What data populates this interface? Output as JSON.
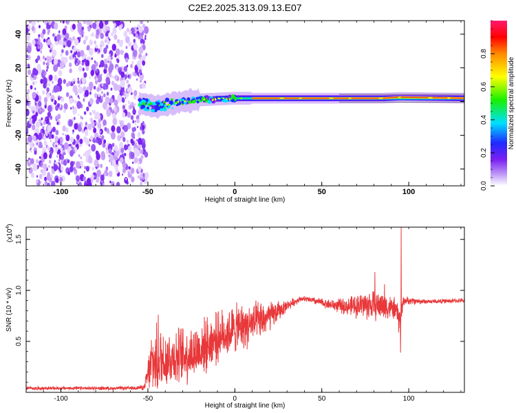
{
  "title": "C2E2.2025.313.09.13.E07",
  "colors": {
    "line": "#e8383a",
    "axis": "#000000",
    "noise_dark": "#7a1ff0",
    "noise_light": "#d8b9fb"
  },
  "chart_data": [
    {
      "type": "heatmap",
      "name": "spectrogram",
      "xlabel": "Height of straight line (km)",
      "ylabel": "Frequency (Hz)",
      "xlim": [
        -120,
        132
      ],
      "ylim": [
        -50,
        48
      ],
      "x_ticks": [
        -100,
        -50,
        0,
        50,
        100
      ],
      "x_tick_labels": [
        "-100",
        "-50",
        "0",
        "50",
        "100"
      ],
      "y_ticks": [
        40,
        20,
        0,
        -20,
        -40
      ],
      "y_tick_labels": [
        "40",
        "20",
        "0",
        "-20",
        "-40"
      ],
      "noise_region_x": [
        -120,
        -53
      ],
      "signal_band": {
        "x_start": -55,
        "x_end": 132,
        "freq_center_hz": [
          [
            -55,
            -1
          ],
          [
            -50,
            -2
          ],
          [
            -45,
            -3
          ],
          [
            -40,
            -2
          ],
          [
            -35,
            -1
          ],
          [
            -30,
            0
          ],
          [
            -25,
            0.5
          ],
          [
            -20,
            1
          ],
          [
            -10,
            1.5
          ],
          [
            0,
            2
          ],
          [
            20,
            2
          ],
          [
            60,
            2
          ],
          [
            85,
            2
          ],
          [
            95,
            2.5
          ],
          [
            132,
            2
          ]
        ]
      },
      "colorbar": {
        "label": "Normalized spectral amplitude",
        "range": [
          0,
          1
        ],
        "ticks": [
          0.0,
          0.2,
          0.4,
          0.6,
          0.8
        ],
        "tick_labels": [
          "0.0",
          "0.2",
          "0.4",
          "0.6",
          "0.8"
        ],
        "colormap": [
          "#ffffff",
          "#7a1ff0",
          "#1e2aff",
          "#00e0ff",
          "#19f000",
          "#ffff00",
          "#ff8a00",
          "#ff0000",
          "#ff1a6e"
        ]
      }
    },
    {
      "type": "line",
      "name": "snr",
      "xlabel": "Height of straight line (km)",
      "ylabel": "SNR (10 * v/v)",
      "scale_label": "(x10",
      "scale_exponent": "4",
      "scale_close": ")",
      "xlim": [
        -120,
        132
      ],
      "ylim": [
        0,
        1.62
      ],
      "x_ticks": [
        -100,
        -50,
        0,
        50,
        100
      ],
      "x_tick_labels": [
        "-100",
        "-50",
        "0",
        "50",
        "100"
      ],
      "y_ticks": [
        0.5,
        1.0,
        1.5
      ],
      "y_tick_labels": [
        "0.5",
        "1.0",
        "1.5"
      ],
      "envelope": [
        [
          -120,
          0.04,
          0.02
        ],
        [
          -60,
          0.04,
          0.02
        ],
        [
          -52,
          0.05,
          0.03
        ],
        [
          -48,
          0.28,
          0.35
        ],
        [
          -44,
          0.32,
          0.4
        ],
        [
          -38,
          0.34,
          0.33
        ],
        [
          -30,
          0.36,
          0.33
        ],
        [
          -22,
          0.4,
          0.33
        ],
        [
          -15,
          0.48,
          0.3
        ],
        [
          -8,
          0.56,
          0.28
        ],
        [
          0,
          0.62,
          0.28
        ],
        [
          8,
          0.66,
          0.25
        ],
        [
          15,
          0.7,
          0.22
        ],
        [
          22,
          0.76,
          0.15
        ],
        [
          30,
          0.85,
          0.06
        ],
        [
          38,
          0.92,
          0.03
        ],
        [
          45,
          0.9,
          0.04
        ],
        [
          55,
          0.86,
          0.06
        ],
        [
          65,
          0.84,
          0.1
        ],
        [
          75,
          0.86,
          0.17
        ],
        [
          85,
          0.85,
          0.17
        ],
        [
          92,
          0.82,
          0.12
        ],
        [
          95,
          0.7,
          0.2
        ],
        [
          97,
          0.9,
          0.05
        ],
        [
          110,
          0.89,
          0.025
        ],
        [
          132,
          0.9,
          0.025
        ]
      ],
      "spikes": [
        [
          95.6,
          1.62
        ],
        [
          95.3,
          0.39
        ],
        [
          80.5,
          1.18
        ],
        [
          86.0,
          1.06
        ],
        [
          -44,
          0.76
        ]
      ]
    }
  ]
}
